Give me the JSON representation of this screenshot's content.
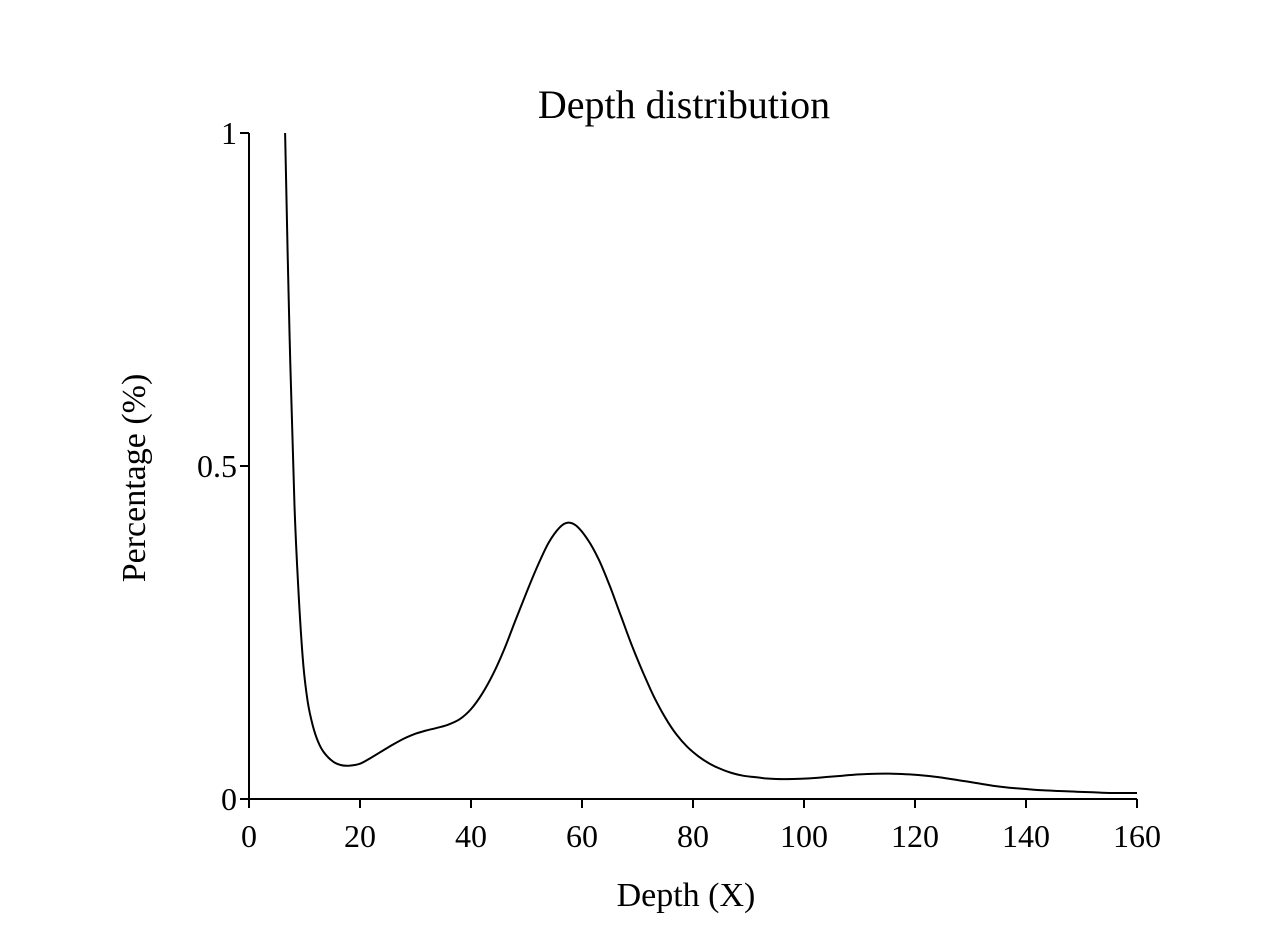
{
  "chart_data": {
    "type": "line",
    "title": "Depth distribution",
    "xlabel": "Depth (X)",
    "ylabel": "Percentage (%)",
    "xlim": [
      0,
      160
    ],
    "ylim": [
      0,
      1
    ],
    "xticks": [
      0,
      20,
      40,
      60,
      80,
      100,
      120,
      140,
      160
    ],
    "xtick_labels": [
      "0",
      "20",
      "40",
      "60",
      "80",
      "100",
      "120",
      "140",
      "160"
    ],
    "yticks": [
      0,
      0.5,
      1
    ],
    "ytick_labels": [
      "0",
      "0.5",
      "1"
    ],
    "grid": false,
    "line_color": "#000000",
    "series": [
      {
        "x": [
          6.5,
          7.3,
          8.2,
          9.0,
          9.8,
          10.6,
          11.5,
          12.5,
          13.5,
          15.0,
          16.5,
          18.0,
          20.0,
          22.0,
          24.0,
          26.0,
          28.0,
          30.0,
          32.0,
          34.0,
          36.0,
          38.0,
          40.0,
          42.0,
          44.0,
          46.0,
          48.0,
          50.0,
          52.0,
          54.0,
          56.0,
          57.5,
          59.0,
          61.0,
          63.0,
          65.0,
          67.0,
          69.0,
          71.0,
          73.0,
          75.0,
          77.0,
          79.0,
          81.0,
          83.0,
          85.0,
          87.0,
          89.0,
          91.0,
          93.0,
          95.0,
          98.0,
          101.0,
          104.0,
          107.0,
          110.0,
          113.0,
          116.0,
          119.0,
          122.0,
          125.0,
          128.0,
          131.0,
          134.0,
          137.0,
          140.0,
          143.0,
          146.0,
          149.0,
          152.0,
          155.0,
          158.0,
          160.0
        ],
        "values": [
          1.0,
          0.7,
          0.44,
          0.3,
          0.2,
          0.145,
          0.11,
          0.085,
          0.07,
          0.057,
          0.051,
          0.05,
          0.053,
          0.062,
          0.072,
          0.082,
          0.091,
          0.098,
          0.103,
          0.107,
          0.112,
          0.12,
          0.135,
          0.158,
          0.188,
          0.225,
          0.268,
          0.31,
          0.35,
          0.385,
          0.408,
          0.415,
          0.41,
          0.39,
          0.36,
          0.32,
          0.275,
          0.23,
          0.19,
          0.153,
          0.122,
          0.097,
          0.078,
          0.064,
          0.053,
          0.045,
          0.039,
          0.035,
          0.033,
          0.031,
          0.03,
          0.03,
          0.031,
          0.033,
          0.035,
          0.037,
          0.038,
          0.038,
          0.037,
          0.035,
          0.032,
          0.028,
          0.024,
          0.02,
          0.017,
          0.015,
          0.013,
          0.012,
          0.011,
          0.01,
          0.009,
          0.009,
          0.009
        ]
      }
    ]
  }
}
